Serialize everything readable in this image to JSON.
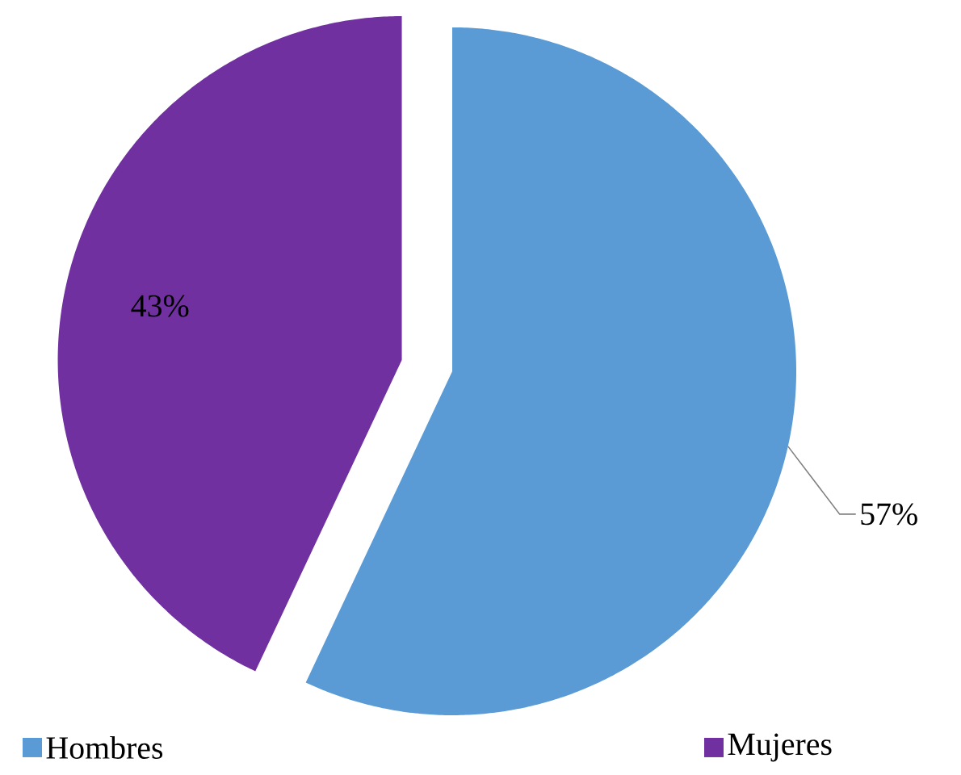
{
  "chart_data": {
    "type": "pie",
    "categories": [
      "Hombres",
      "Mujeres"
    ],
    "values": [
      57,
      43
    ],
    "colors": [
      "#5b9bd5",
      "#7030a0"
    ],
    "value_labels": [
      "57%",
      "43%"
    ],
    "legend": "bottom"
  }
}
